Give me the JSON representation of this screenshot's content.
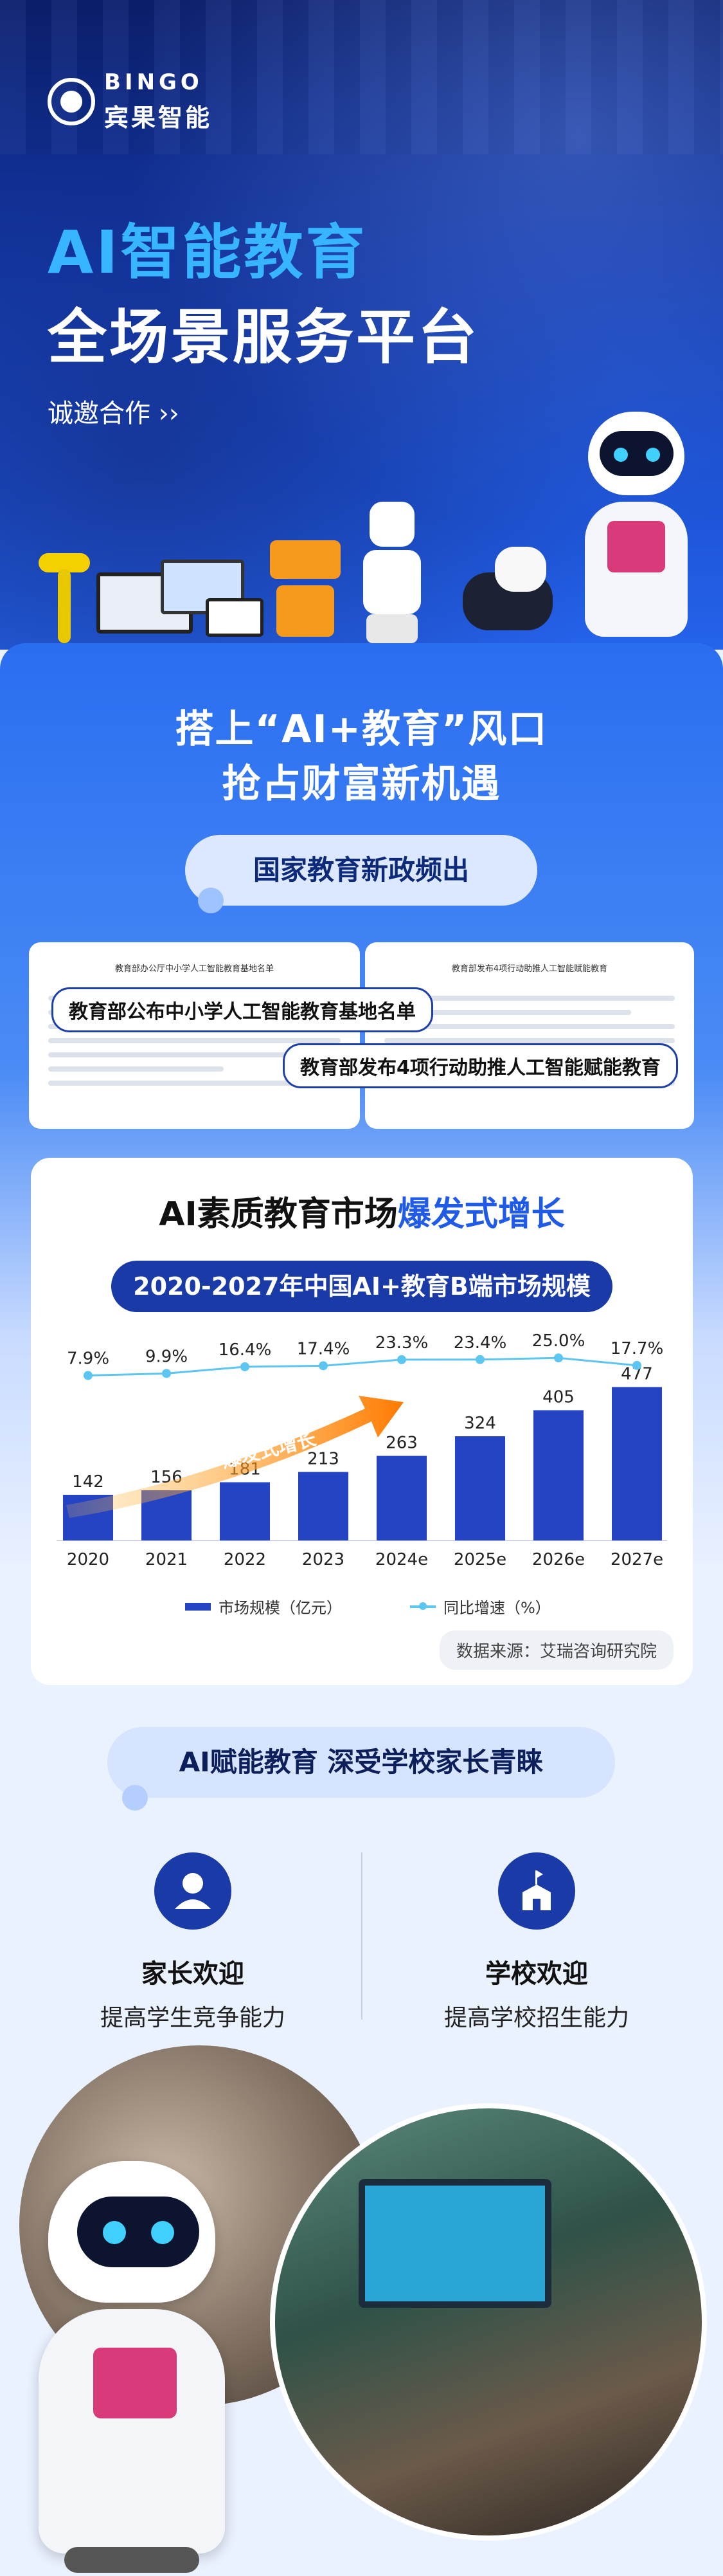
{
  "brand": {
    "en": "BINGO",
    "cn": "宾果智能"
  },
  "hero": {
    "title1": "AI智能教育",
    "title2": "全场景服务平台",
    "cta": "诚邀合作 ››"
  },
  "section2": {
    "title1": "搭上“AI+教育”风口",
    "title2": "抢占财富新机遇",
    "pill": "国家教育新政频出",
    "doc1_title": "教育部办公厅中小学人工智能教育基地名单",
    "doc2_title": "教育部发布4项行动助推人工智能赋能教育",
    "tag1": "教育部公布中小学人工智能教育基地名单",
    "tag2": "教育部发布4项行动助推人工智能赋能教育"
  },
  "chart_card": {
    "title_prefix": "AI素质教育市场",
    "title_highlight": "爆发式增长",
    "chart_title": "2020-2027年中国AI+教育B端市场规模",
    "arrow_label": "爆发式增长",
    "source": "数据来源：艾瑞咨询研究院"
  },
  "chart_data": {
    "type": "bar",
    "title": "2020-2027年中国AI+教育B端市场规模",
    "categories": [
      "2020",
      "2021",
      "2022",
      "2023",
      "2024e",
      "2025e",
      "2026e",
      "2027e"
    ],
    "series": [
      {
        "name": "市场规模（亿元）",
        "type": "bar",
        "values": [
          142,
          156,
          181,
          213,
          263,
          324,
          405,
          477
        ]
      },
      {
        "name": "同比增速（%）",
        "type": "line",
        "values": [
          7.9,
          9.9,
          16.4,
          17.4,
          23.3,
          23.4,
          25.0,
          17.7
        ],
        "labels": [
          "7.9%",
          "9.9%",
          "16.4%",
          "17.4%",
          "23.3%",
          "23.4%",
          "25.0%",
          "17.7%"
        ]
      }
    ],
    "legend": "bottom",
    "colors": {
      "bar": "#2444c4",
      "line": "#5cc6f0"
    }
  },
  "section3": {
    "pill": "AI赋能教育   深受学校家长青睐",
    "parents_title": "家长欢迎",
    "parents_sub": "提高学生竞争能力",
    "school_title": "学校欢迎",
    "school_sub": "提高学校招生能力"
  },
  "icons": {
    "parents": "parent-icon",
    "school": "school-icon"
  }
}
